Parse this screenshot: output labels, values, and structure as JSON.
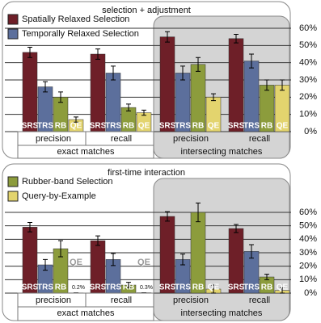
{
  "chart_data": [
    {
      "type": "bar",
      "title": "selection + adjustment",
      "categories": [
        "precision",
        "recall",
        "precision",
        "recall"
      ],
      "groups": [
        "exact matches",
        "intersecting matches"
      ],
      "ylim": [
        0,
        60
      ],
      "yticks": [
        {
          "value": 0,
          "label": "0%"
        },
        {
          "value": 10,
          "label": "10%"
        },
        {
          "value": 20,
          "label": "20%"
        },
        {
          "value": 30,
          "label": "30%"
        },
        {
          "value": 40,
          "label": "40%"
        },
        {
          "value": 50,
          "label": "50%"
        },
        {
          "value": 60,
          "label": "60%"
        }
      ],
      "grid": true,
      "series": [
        {
          "name": "Spatially Relaxed Selection",
          "short": "SRS",
          "color": "#6e1f28",
          "values": [
            46,
            45,
            55,
            54
          ],
          "errors": [
            3,
            3,
            3,
            2.5
          ]
        },
        {
          "name": "Temporally Relaxed Selection",
          "short": "TRS",
          "color": "#5c6f9c",
          "values": [
            26,
            34,
            34,
            41
          ],
          "errors": [
            3,
            4,
            4,
            4
          ]
        },
        {
          "short": "RB",
          "color": "#8c9c3c",
          "values": [
            20,
            14,
            39,
            27
          ],
          "errors": [
            3,
            2,
            4,
            3
          ]
        },
        {
          "short": "QE",
          "color": "#e3d46e",
          "values": [
            7,
            11,
            20,
            27
          ],
          "errors": [
            1.5,
            1.5,
            2,
            3
          ]
        }
      ]
    },
    {
      "type": "bar",
      "title": "first-time interaction",
      "categories": [
        "precision",
        "recall",
        "precision",
        "recall"
      ],
      "groups": [
        "exact matches",
        "intersecting matches"
      ],
      "ylim": [
        0,
        60
      ],
      "yticks": [
        {
          "value": 0,
          "label": "0%"
        },
        {
          "value": 10,
          "label": "10%"
        },
        {
          "value": 20,
          "label": "20%"
        },
        {
          "value": 30,
          "label": "30%"
        },
        {
          "value": 40,
          "label": "40%"
        },
        {
          "value": 50,
          "label": "50%"
        },
        {
          "value": 60,
          "label": "60%"
        }
      ],
      "grid": true,
      "series": [
        {
          "short": "SRS",
          "color": "#6e1f28",
          "values": [
            49,
            39,
            57,
            48
          ],
          "errors": [
            3.5,
            3.5,
            3.5,
            3
          ]
        },
        {
          "short": "TRS",
          "color": "#5c6f9c",
          "values": [
            21,
            25,
            25,
            31
          ],
          "errors": [
            4,
            4.5,
            4,
            5
          ]
        },
        {
          "name": "Rubber-band Selection",
          "short": "RB",
          "color": "#8c9c3c",
          "values": [
            33,
            6,
            60,
            12
          ],
          "errors": [
            6,
            2,
            7,
            2
          ]
        },
        {
          "name": "Query-by-Example",
          "short": "QE",
          "color": "#e3d46e",
          "values": [
            0.2,
            0.3,
            3,
            2
          ],
          "errors": [
            0,
            0,
            3,
            2
          ],
          "value_labels": [
            "0.2%",
            "0.3%",
            null,
            null
          ]
        }
      ]
    }
  ]
}
